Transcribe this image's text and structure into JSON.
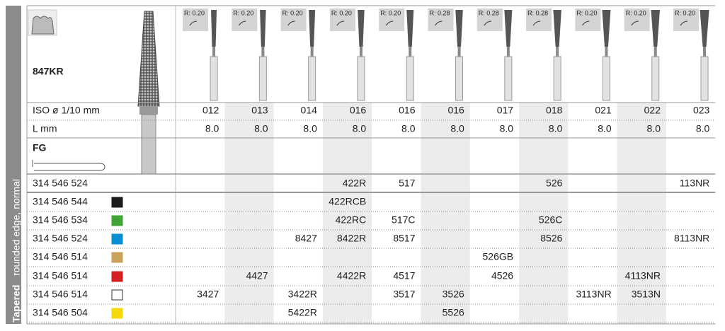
{
  "sidebar": {
    "line1": "Tapered",
    "line2": "rounded edge, normal"
  },
  "product": {
    "name": "847KR",
    "shank": "FG"
  },
  "columns": {
    "radius": [
      "R: 0.20",
      "R: 0.20",
      "R: 0.20",
      "R: 0.20",
      "R: 0.20",
      "R: 0.28",
      "R: 0.28",
      "R: 0.28",
      "R: 0.20",
      "R: 0.20",
      "R: 0.20"
    ],
    "iso_label": "ISO ø 1/10 mm",
    "iso": [
      "012",
      "013",
      "014",
      "016",
      "016",
      "016",
      "017",
      "018",
      "021",
      "022",
      "023"
    ],
    "length_label": "L mm",
    "length": [
      "8.0",
      "8.0",
      "8.0",
      "8.0",
      "8.0",
      "8.0",
      "8.0",
      "8.0",
      "8.0",
      "8.0",
      "8.0"
    ]
  },
  "rows": [
    {
      "code": "314 546 524",
      "color": null,
      "cells": [
        null,
        null,
        null,
        "422R",
        "517",
        null,
        null,
        "526",
        null,
        null,
        "113NR"
      ]
    },
    {
      "code": "314 546 544",
      "color": "#1a1a1a",
      "cells": [
        null,
        null,
        null,
        "422RCB",
        null,
        null,
        null,
        null,
        null,
        null,
        null
      ]
    },
    {
      "code": "314 546 534",
      "color": "#3fa535",
      "cells": [
        null,
        null,
        null,
        "422RC",
        "517C",
        null,
        null,
        "526C",
        null,
        null,
        null
      ]
    },
    {
      "code": "314 546 524",
      "color": "#0a8fd6",
      "cells": [
        null,
        null,
        "8427",
        "8422R",
        "8517",
        null,
        null,
        "8526",
        null,
        null,
        "8113NR"
      ]
    },
    {
      "code": "314 546 514",
      "color": "#c9a35a",
      "cells": [
        null,
        null,
        null,
        null,
        null,
        null,
        "526GB",
        null,
        null,
        null,
        null
      ]
    },
    {
      "code": "314 546 514",
      "color": "#d42020",
      "cells": [
        null,
        "4427",
        null,
        "4422R",
        "4517",
        null,
        "4526",
        null,
        null,
        "4113NR",
        null
      ]
    },
    {
      "code": "314 546 514",
      "color": "#ffffff",
      "cells": [
        "3427",
        null,
        "3422R",
        null,
        "3517",
        "3526",
        null,
        null,
        "3113NR",
        "3513N",
        null
      ]
    },
    {
      "code": "314 546 504",
      "color": "#f5d90a",
      "cells": [
        null,
        null,
        "5422R",
        null,
        null,
        "5526",
        null,
        null,
        null,
        null,
        null
      ]
    }
  ]
}
